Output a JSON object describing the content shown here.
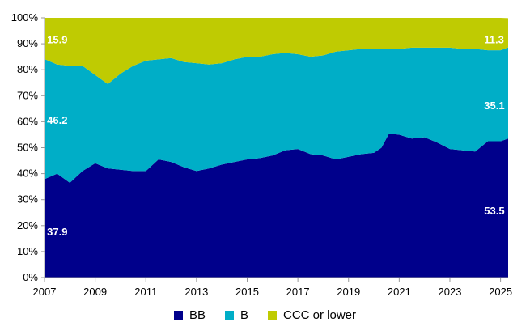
{
  "chart_data": {
    "type": "area",
    "stacked": true,
    "title": "",
    "xlabel": "",
    "ylabel": "",
    "xlim": [
      2007,
      2025.3
    ],
    "ylim": [
      0,
      100
    ],
    "x_ticks": [
      "2007",
      "2009",
      "2011",
      "2013",
      "2015",
      "2017",
      "2019",
      "2021",
      "2023",
      "2025"
    ],
    "y_ticks": [
      "0%",
      "10%",
      "20%",
      "30%",
      "40%",
      "50%",
      "60%",
      "70%",
      "80%",
      "90%",
      "100%"
    ],
    "grid": false,
    "legend_position": "bottom",
    "series": [
      {
        "name": "BB",
        "color": "#00008B",
        "points": [
          [
            2007.0,
            37.9
          ],
          [
            2007.5,
            40.0
          ],
          [
            2008.0,
            36.5
          ],
          [
            2008.5,
            41.0
          ],
          [
            2009.0,
            44.0
          ],
          [
            2009.5,
            42.0
          ],
          [
            2010.0,
            41.5
          ],
          [
            2010.5,
            41.0
          ],
          [
            2011.0,
            41.0
          ],
          [
            2011.5,
            45.5
          ],
          [
            2012.0,
            44.5
          ],
          [
            2012.5,
            42.5
          ],
          [
            2013.0,
            41.0
          ],
          [
            2013.5,
            42.0
          ],
          [
            2014.0,
            43.5
          ],
          [
            2014.5,
            44.5
          ],
          [
            2015.0,
            45.5
          ],
          [
            2015.5,
            46.0
          ],
          [
            2016.0,
            47.0
          ],
          [
            2016.5,
            49.0
          ],
          [
            2017.0,
            49.5
          ],
          [
            2017.5,
            47.5
          ],
          [
            2018.0,
            47.0
          ],
          [
            2018.5,
            45.5
          ],
          [
            2019.0,
            46.5
          ],
          [
            2019.5,
            47.5
          ],
          [
            2020.0,
            48.0
          ],
          [
            2020.3,
            50.0
          ],
          [
            2020.6,
            55.5
          ],
          [
            2021.0,
            55.0
          ],
          [
            2021.5,
            53.5
          ],
          [
            2022.0,
            54.0
          ],
          [
            2022.5,
            52.0
          ],
          [
            2023.0,
            49.5
          ],
          [
            2023.5,
            49.0
          ],
          [
            2024.0,
            48.5
          ],
          [
            2024.5,
            52.5
          ],
          [
            2025.0,
            52.5
          ],
          [
            2025.3,
            53.5
          ]
        ]
      },
      {
        "name": "B",
        "color": "#00AEC7",
        "points": [
          [
            2007.0,
            46.2
          ],
          [
            2007.5,
            42.0
          ],
          [
            2008.0,
            45.0
          ],
          [
            2008.5,
            40.5
          ],
          [
            2009.0,
            34.0
          ],
          [
            2009.5,
            32.5
          ],
          [
            2010.0,
            37.0
          ],
          [
            2010.5,
            40.5
          ],
          [
            2011.0,
            42.5
          ],
          [
            2011.5,
            38.5
          ],
          [
            2012.0,
            40.0
          ],
          [
            2012.5,
            40.5
          ],
          [
            2013.0,
            41.5
          ],
          [
            2013.5,
            40.0
          ],
          [
            2014.0,
            39.0
          ],
          [
            2014.5,
            39.5
          ],
          [
            2015.0,
            39.5
          ],
          [
            2015.5,
            39.0
          ],
          [
            2016.0,
            39.0
          ],
          [
            2016.5,
            37.5
          ],
          [
            2017.0,
            36.5
          ],
          [
            2017.5,
            37.5
          ],
          [
            2018.0,
            38.5
          ],
          [
            2018.5,
            41.5
          ],
          [
            2019.0,
            41.0
          ],
          [
            2019.5,
            40.5
          ],
          [
            2020.0,
            40.0
          ],
          [
            2020.3,
            38.0
          ],
          [
            2020.6,
            32.5
          ],
          [
            2021.0,
            33.0
          ],
          [
            2021.5,
            35.0
          ],
          [
            2022.0,
            34.5
          ],
          [
            2022.5,
            36.5
          ],
          [
            2023.0,
            39.0
          ],
          [
            2023.5,
            39.0
          ],
          [
            2024.0,
            39.5
          ],
          [
            2024.5,
            35.0
          ],
          [
            2025.0,
            35.0
          ],
          [
            2025.3,
            35.1
          ]
        ]
      },
      {
        "name": "CCC or lower",
        "color": "#BFCB02",
        "points": [
          [
            2007.0,
            15.9
          ],
          [
            2007.5,
            18.0
          ],
          [
            2008.0,
            18.5
          ],
          [
            2008.5,
            18.5
          ],
          [
            2009.0,
            22.0
          ],
          [
            2009.5,
            25.5
          ],
          [
            2010.0,
            21.5
          ],
          [
            2010.5,
            18.5
          ],
          [
            2011.0,
            16.5
          ],
          [
            2011.5,
            16.0
          ],
          [
            2012.0,
            15.5
          ],
          [
            2012.5,
            17.0
          ],
          [
            2013.0,
            17.5
          ],
          [
            2013.5,
            18.0
          ],
          [
            2014.0,
            17.5
          ],
          [
            2014.5,
            16.0
          ],
          [
            2015.0,
            15.0
          ],
          [
            2015.5,
            15.0
          ],
          [
            2016.0,
            14.0
          ],
          [
            2016.5,
            13.5
          ],
          [
            2017.0,
            14.0
          ],
          [
            2017.5,
            15.0
          ],
          [
            2018.0,
            14.5
          ],
          [
            2018.5,
            13.0
          ],
          [
            2019.0,
            12.5
          ],
          [
            2019.5,
            12.0
          ],
          [
            2020.0,
            12.0
          ],
          [
            2020.3,
            12.0
          ],
          [
            2020.6,
            12.0
          ],
          [
            2021.0,
            12.0
          ],
          [
            2021.5,
            11.5
          ],
          [
            2022.0,
            11.5
          ],
          [
            2022.5,
            11.5
          ],
          [
            2023.0,
            11.5
          ],
          [
            2023.5,
            12.0
          ],
          [
            2024.0,
            12.0
          ],
          [
            2024.5,
            12.5
          ],
          [
            2025.0,
            12.5
          ],
          [
            2025.3,
            11.3
          ]
        ]
      }
    ],
    "annotations": [
      {
        "text": "15.9",
        "x": 2007.1,
        "y": 91.5,
        "color": "#ffffff"
      },
      {
        "text": "46.2",
        "x": 2007.1,
        "y": 60.5,
        "color": "#ffffff"
      },
      {
        "text": "37.9",
        "x": 2007.1,
        "y": 17.5,
        "color": "#ffffff"
      },
      {
        "text": "11.3",
        "x": 2024.35,
        "y": 91.5,
        "color": "#ffffff"
      },
      {
        "text": "35.1",
        "x": 2024.35,
        "y": 66.0,
        "color": "#ffffff"
      },
      {
        "text": "53.5",
        "x": 2024.35,
        "y": 25.5,
        "color": "#ffffff"
      }
    ]
  }
}
